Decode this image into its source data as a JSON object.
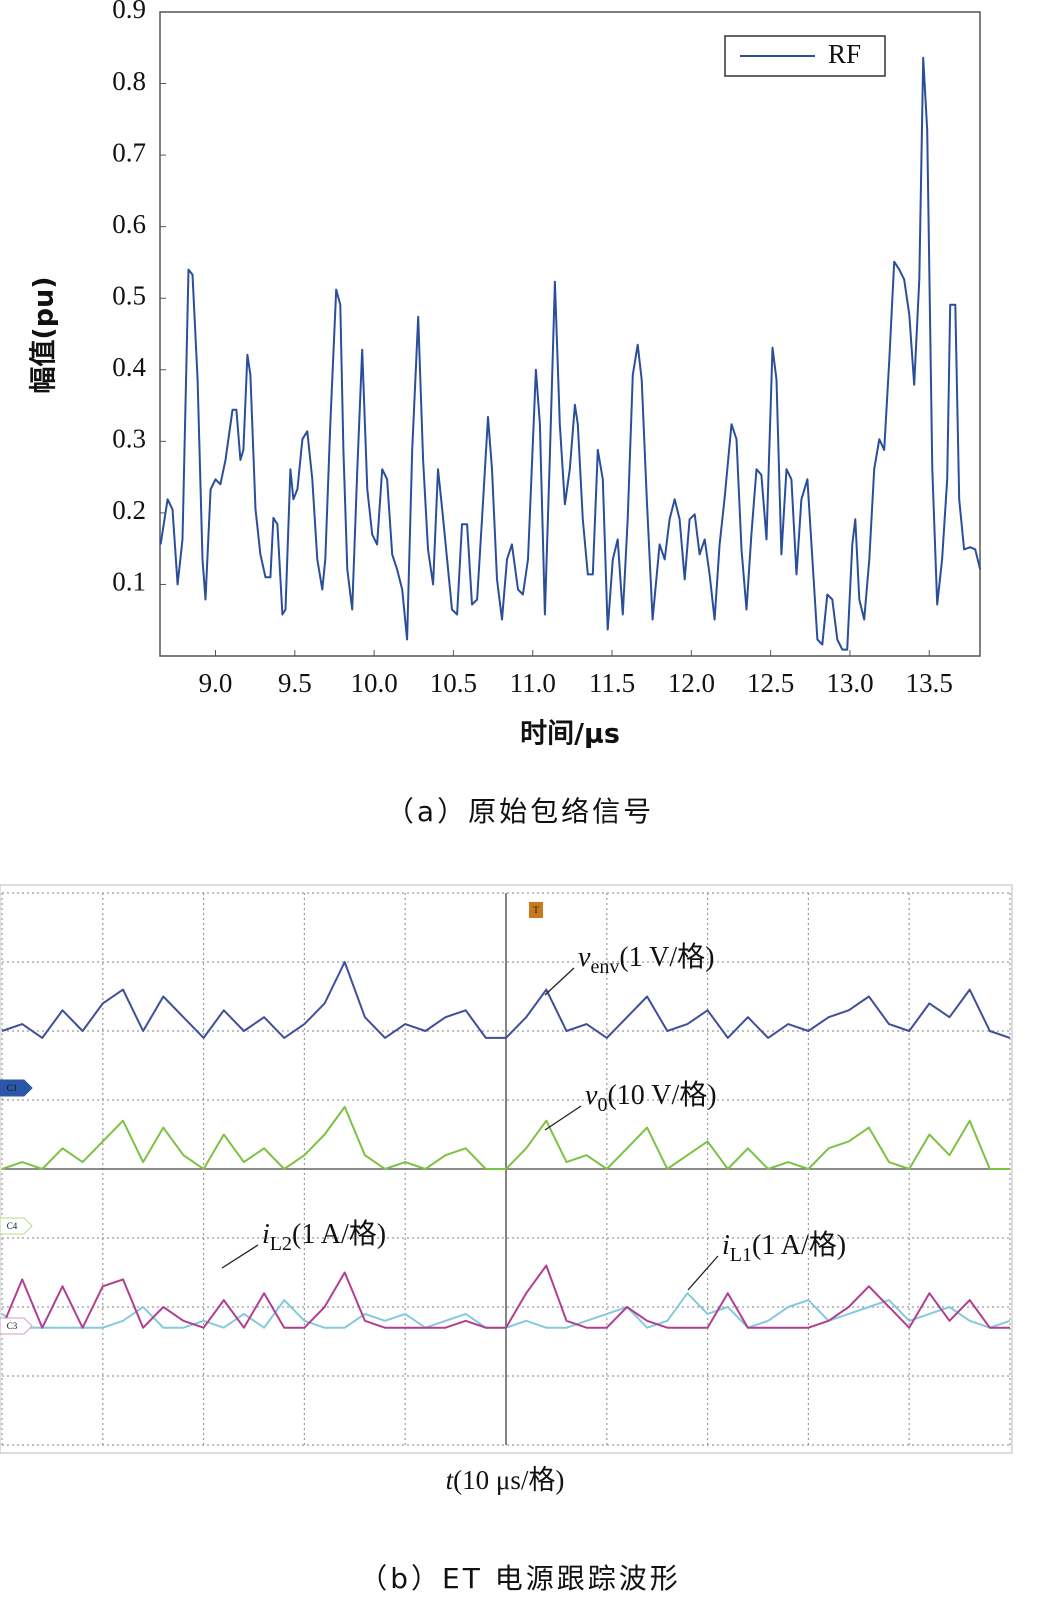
{
  "chart_data": [
    {
      "type": "line",
      "caption": "（a）原始包络信号",
      "xlabel": "时间/μs",
      "ylabel": "幅值(pu)",
      "xlim": [
        8.65,
        13.82
      ],
      "ylim": [
        0,
        0.9
      ],
      "xticks": [
        {
          "value": 9,
          "label": "9.0"
        },
        9.5,
        {
          "value": 10,
          "label": "10.0"
        },
        10.5,
        {
          "value": 11,
          "label": "11.0"
        },
        11.5,
        {
          "value": 12,
          "label": "12.0"
        },
        12.5,
        {
          "value": 13,
          "label": "13.0"
        },
        13.5
      ],
      "yticks": [
        0.1,
        0.2,
        0.3,
        0.4,
        0.5,
        0.6,
        0.7,
        0.8,
        0.9
      ],
      "grid": false,
      "legend": "upper right",
      "x": [
        8.654,
        8.698,
        8.729,
        8.761,
        8.792,
        8.83,
        8.855,
        8.887,
        8.918,
        8.937,
        8.969,
        9.0,
        9.031,
        9.063,
        9.107,
        9.132,
        9.157,
        9.176,
        9.201,
        9.22,
        9.252,
        9.283,
        9.315,
        9.346,
        9.365,
        9.39,
        9.422,
        9.441,
        9.472,
        9.491,
        9.516,
        9.548,
        9.579,
        9.61,
        9.642,
        9.673,
        9.692,
        9.724,
        9.761,
        9.787,
        9.806,
        9.831,
        9.862,
        9.894,
        9.925,
        9.957,
        9.988,
        10.019,
        10.051,
        10.082,
        10.114,
        10.145,
        10.177,
        10.208,
        10.24,
        10.278,
        10.309,
        10.34,
        10.372,
        10.403,
        10.429,
        10.46,
        10.491,
        10.523,
        10.554,
        10.586,
        10.617,
        10.649,
        10.68,
        10.718,
        10.743,
        10.775,
        10.806,
        10.838,
        10.869,
        10.907,
        10.938,
        10.97,
        11.02,
        11.045,
        11.077,
        11.108,
        11.14,
        11.171,
        11.203,
        11.234,
        11.266,
        11.284,
        11.316,
        11.347,
        11.379,
        11.41,
        11.442,
        11.473,
        11.505,
        11.536,
        11.568,
        11.599,
        11.631,
        11.662,
        11.687,
        11.719,
        11.756,
        11.8,
        11.832,
        11.863,
        11.895,
        11.926,
        11.958,
        11.989,
        12.021,
        12.052,
        12.084,
        12.115,
        12.147,
        12.178,
        12.209,
        12.253,
        12.285,
        12.316,
        12.348,
        12.379,
        12.411,
        12.442,
        12.474,
        12.512,
        12.537,
        12.568,
        12.6,
        12.631,
        12.663,
        12.694,
        12.732,
        12.763,
        12.795,
        12.826,
        12.857,
        12.889,
        12.92,
        12.952,
        12.983,
        13.015,
        13.034,
        13.059,
        13.09,
        13.122,
        13.153,
        13.185,
        13.216,
        13.248,
        13.279,
        13.311,
        13.342,
        13.374,
        13.405,
        13.437,
        13.462,
        13.487,
        13.519,
        13.55,
        13.581,
        13.613,
        13.632,
        13.664,
        13.689,
        13.72,
        13.758,
        13.79,
        13.821
      ],
      "series": [
        {
          "name": "RF",
          "color": "#2b4e9b",
          "values": [
            0.156,
            0.219,
            0.205,
            0.1,
            0.163,
            0.54,
            0.533,
            0.386,
            0.135,
            0.079,
            0.233,
            0.247,
            0.24,
            0.274,
            0.344,
            0.344,
            0.274,
            0.288,
            0.421,
            0.393,
            0.205,
            0.142,
            0.11,
            0.11,
            0.193,
            0.184,
            0.058,
            0.065,
            0.261,
            0.219,
            0.233,
            0.303,
            0.314,
            0.247,
            0.135,
            0.093,
            0.135,
            0.324,
            0.512,
            0.491,
            0.288,
            0.121,
            0.065,
            0.261,
            0.428,
            0.233,
            0.17,
            0.156,
            0.261,
            0.247,
            0.142,
            0.121,
            0.093,
            0.023,
            0.288,
            0.474,
            0.274,
            0.149,
            0.1,
            0.261,
            0.205,
            0.135,
            0.065,
            0.058,
            0.184,
            0.184,
            0.072,
            0.079,
            0.191,
            0.334,
            0.261,
            0.107,
            0.051,
            0.135,
            0.156,
            0.093,
            0.086,
            0.135,
            0.4,
            0.324,
            0.058,
            0.281,
            0.523,
            0.324,
            0.212,
            0.261,
            0.351,
            0.324,
            0.191,
            0.114,
            0.114,
            0.288,
            0.247,
            0.037,
            0.135,
            0.163,
            0.058,
            0.191,
            0.393,
            0.435,
            0.386,
            0.219,
            0.051,
            0.156,
            0.135,
            0.191,
            0.219,
            0.191,
            0.107,
            0.191,
            0.198,
            0.142,
            0.163,
            0.114,
            0.051,
            0.156,
            0.219,
            0.324,
            0.303,
            0.149,
            0.065,
            0.17,
            0.261,
            0.253,
            0.163,
            0.431,
            0.386,
            0.142,
            0.261,
            0.247,
            0.114,
            0.219,
            0.247,
            0.135,
            0.023,
            0.016,
            0.086,
            0.079,
            0.023,
            0.009,
            0.009,
            0.156,
            0.191,
            0.079,
            0.051,
            0.135,
            0.261,
            0.303,
            0.288,
            0.414,
            0.551,
            0.54,
            0.526,
            0.477,
            0.379,
            0.526,
            0.836,
            0.735,
            0.261,
            0.072,
            0.135,
            0.247,
            0.491,
            0.491,
            0.219,
            0.149,
            0.152,
            0.149,
            0.121
          ]
        }
      ]
    },
    {
      "type": "line",
      "caption": "（b）ET 电源跟踪波形",
      "xlabel": {
        "symbol": "t",
        "text": "(10 μs/格)"
      },
      "xlim": [
        0,
        10
      ],
      "ylim": [
        0,
        8
      ],
      "xticks": [
        0,
        1,
        2,
        3,
        4,
        5,
        6,
        7,
        8,
        9,
        10
      ],
      "yticks": [
        0,
        1,
        2,
        3,
        4,
        5,
        6,
        7,
        8
      ],
      "tick_labels": false,
      "grid": true,
      "markers": [
        "T",
        "C1",
        "C4",
        "C3"
      ],
      "annotations": [
        {
          "symbol": "v",
          "sub": "env",
          "text": "(1 V/格)"
        },
        {
          "symbol": "v",
          "sub": "0",
          "text": "(10 V/格)"
        },
        {
          "symbol": "i",
          "sub": "L2",
          "text": "(1 A/格)"
        },
        {
          "symbol": "i",
          "sub": "L1",
          "text": "(1 A/格)"
        }
      ],
      "x": [
        0,
        0.2,
        0.4,
        0.6,
        0.8,
        1,
        1.2,
        1.4,
        1.6,
        1.8,
        2,
        2.2,
        2.4,
        2.6,
        2.8,
        3,
        3.2,
        3.4,
        3.6,
        3.8,
        4,
        4.2,
        4.4,
        4.6,
        4.8,
        5,
        5.2,
        5.4,
        5.6,
        5.8,
        6,
        6.2,
        6.4,
        6.6,
        6.8,
        7,
        7.2,
        7.4,
        7.6,
        7.8,
        8,
        8.2,
        8.4,
        8.6,
        8.8,
        9,
        9.2,
        9.4,
        9.6,
        9.8,
        10
      ],
      "series": [
        {
          "color": "#3f4f9a",
          "values": [
            6.0,
            6.1,
            5.9,
            6.3,
            6.0,
            6.4,
            6.6,
            6.0,
            6.5,
            6.2,
            5.9,
            6.3,
            6.0,
            6.2,
            5.9,
            6.1,
            6.4,
            7.0,
            6.2,
            5.9,
            6.1,
            6.0,
            6.2,
            6.3,
            5.9,
            5.9,
            6.2,
            6.6,
            6.0,
            6.1,
            5.9,
            6.2,
            6.5,
            6.0,
            6.1,
            6.3,
            5.9,
            6.2,
            5.9,
            6.1,
            6.0,
            6.2,
            6.3,
            6.5,
            6.1,
            6.0,
            6.4,
            6.2,
            6.6,
            6.0,
            5.9
          ]
        },
        {
          "color": "#7cc244",
          "values": [
            4.0,
            4.1,
            4.0,
            4.3,
            4.1,
            4.4,
            4.7,
            4.1,
            4.6,
            4.2,
            4.0,
            4.5,
            4.1,
            4.3,
            4.0,
            4.2,
            4.5,
            4.9,
            4.2,
            4.0,
            4.1,
            4.0,
            4.2,
            4.3,
            4.0,
            4.0,
            4.3,
            4.7,
            4.1,
            4.2,
            4.0,
            4.3,
            4.6,
            4.0,
            4.2,
            4.4,
            4.0,
            4.3,
            4.0,
            4.1,
            4.0,
            4.3,
            4.4,
            4.6,
            4.1,
            4.0,
            4.5,
            4.2,
            4.7,
            4.0,
            4.0
          ]
        },
        {
          "color": "#86c9dc",
          "values": [
            1.9,
            1.7,
            1.7,
            1.7,
            1.7,
            1.7,
            1.8,
            2.0,
            1.7,
            1.7,
            1.8,
            1.7,
            1.9,
            1.7,
            2.1,
            1.8,
            1.7,
            1.7,
            1.9,
            1.8,
            1.9,
            1.7,
            1.8,
            1.9,
            1.7,
            1.7,
            1.8,
            1.7,
            1.7,
            1.8,
            1.9,
            2.0,
            1.7,
            1.8,
            2.2,
            1.9,
            2.0,
            1.7,
            1.8,
            2.0,
            2.1,
            1.8,
            1.9,
            2.0,
            2.1,
            1.8,
            1.9,
            2.0,
            1.8,
            1.7,
            1.8
          ]
        },
        {
          "color": "#b0408f",
          "values": [
            1.7,
            2.4,
            1.7,
            2.3,
            1.7,
            2.3,
            2.4,
            1.7,
            2.0,
            1.8,
            1.7,
            2.1,
            1.7,
            2.2,
            1.7,
            1.7,
            2.0,
            2.5,
            1.8,
            1.7,
            1.7,
            1.7,
            1.7,
            1.8,
            1.7,
            1.7,
            2.2,
            2.6,
            1.8,
            1.7,
            1.7,
            2.0,
            1.8,
            1.7,
            1.7,
            1.7,
            2.2,
            1.7,
            1.7,
            1.7,
            1.7,
            1.8,
            2.0,
            2.3,
            2.0,
            1.7,
            2.2,
            1.8,
            2.1,
            1.7,
            1.7
          ]
        }
      ]
    }
  ]
}
